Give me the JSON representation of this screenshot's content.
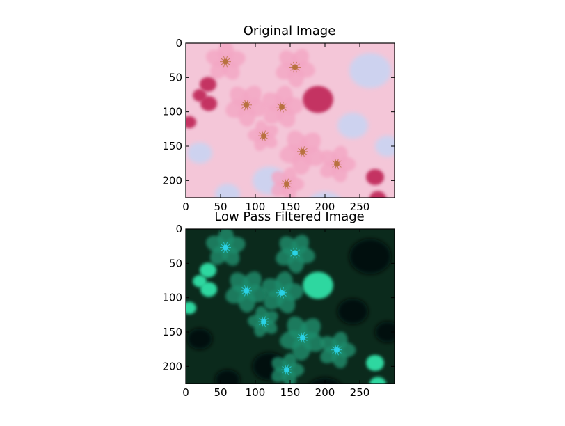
{
  "chart_data": [
    {
      "type": "image",
      "title": "Original Image",
      "xlim": [
        0,
        300
      ],
      "ylim": [
        225,
        0
      ],
      "xticks": [
        0,
        50,
        100,
        150,
        200,
        250
      ],
      "yticks": [
        0,
        50,
        100,
        150,
        200
      ],
      "xtick_labels": [
        "0",
        "50",
        "100",
        "150",
        "200",
        "250"
      ],
      "ytick_labels": [
        "0",
        "50",
        "100",
        "150",
        "200"
      ],
      "palette": {
        "base": "#f4c6d8",
        "sky": "#c9d4f2",
        "petal": "#f3a7c4",
        "deep": "#c22a5c",
        "center": "#b8713e"
      }
    },
    {
      "type": "image",
      "title": "Low Pass Filtered Image",
      "xlim": [
        0,
        300
      ],
      "ylim": [
        225,
        0
      ],
      "xticks": [
        0,
        50,
        100,
        150,
        200,
        250
      ],
      "yticks": [
        0,
        50,
        100,
        150,
        200
      ],
      "xtick_labels": [
        "0",
        "50",
        "100",
        "150",
        "200",
        "250"
      ],
      "ytick_labels": [
        "0",
        "50",
        "100",
        "150",
        "200"
      ],
      "palette": {
        "base": "#0b2a1c",
        "shadow": "#05110a",
        "petal": "#1f8d6d",
        "bright": "#2ee0a6",
        "center": "#2bd3e8"
      }
    }
  ],
  "blossoms": [
    {
      "x": 57,
      "y": 27,
      "r": 28
    },
    {
      "x": 87,
      "y": 90,
      "r": 30
    },
    {
      "x": 138,
      "y": 93,
      "r": 30
    },
    {
      "x": 168,
      "y": 158,
      "r": 32
    },
    {
      "x": 157,
      "y": 35,
      "r": 28
    },
    {
      "x": 217,
      "y": 176,
      "r": 26
    },
    {
      "x": 112,
      "y": 135,
      "r": 22
    },
    {
      "x": 145,
      "y": 205,
      "r": 24
    }
  ],
  "buds": [
    {
      "x": 190,
      "y": 82,
      "r": 22
    },
    {
      "x": 32,
      "y": 60,
      "r": 12
    },
    {
      "x": 33,
      "y": 88,
      "r": 12
    },
    {
      "x": 20,
      "y": 76,
      "r": 10
    },
    {
      "x": 272,
      "y": 195,
      "r": 13
    },
    {
      "x": 276,
      "y": 226,
      "r": 12
    },
    {
      "x": 5,
      "y": 115,
      "r": 10
    }
  ]
}
